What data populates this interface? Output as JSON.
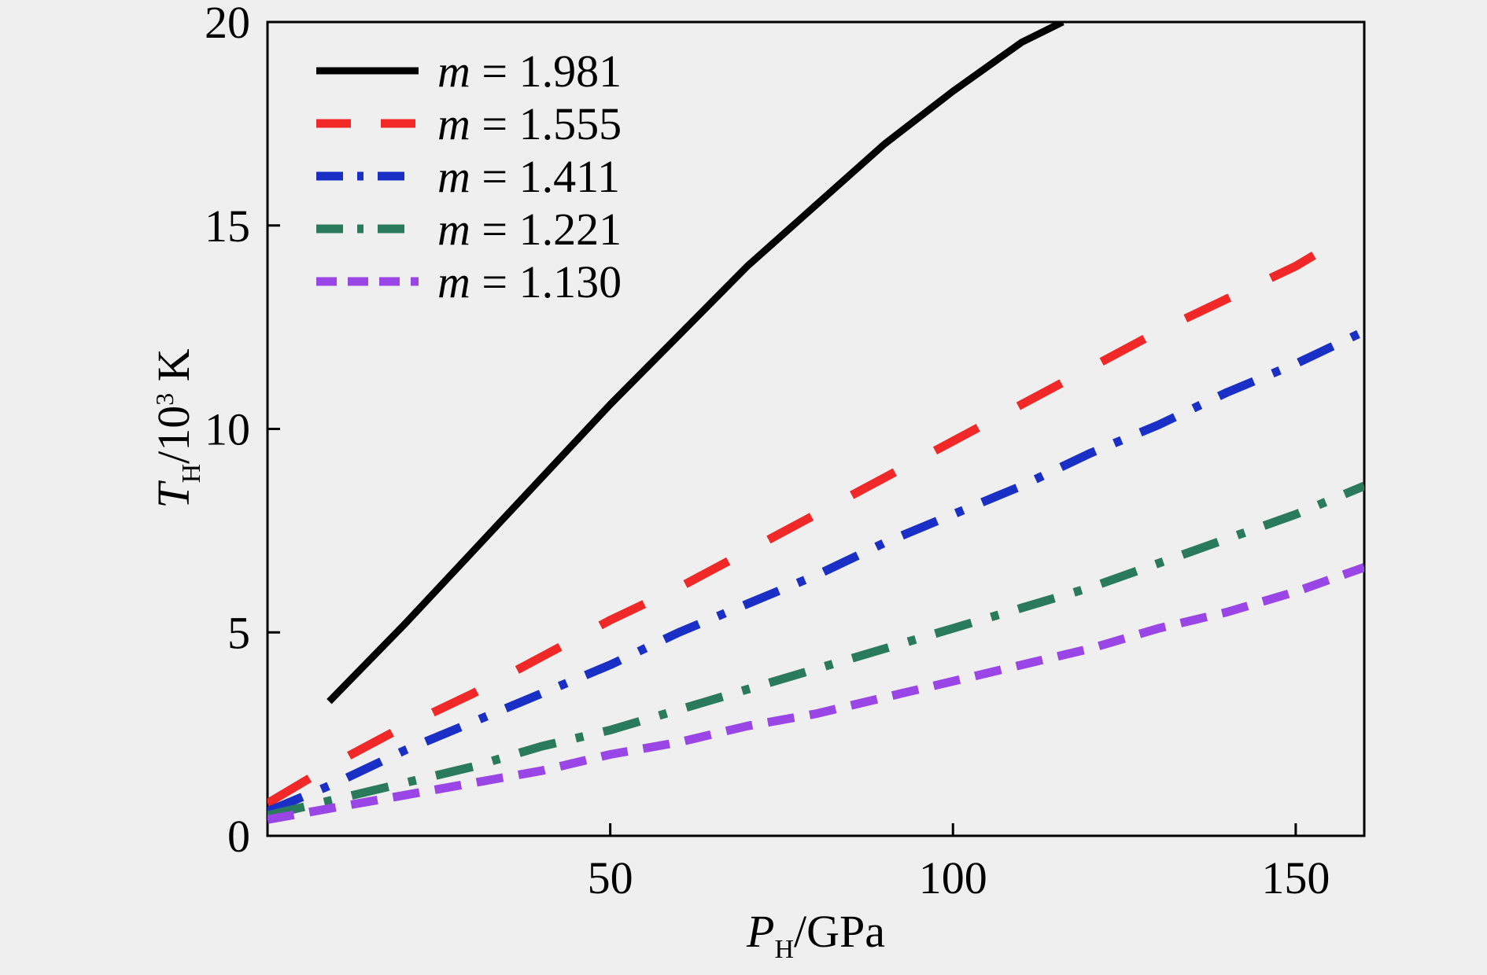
{
  "chart_data": {
    "type": "line",
    "title": "",
    "xlabel": {
      "main": "P",
      "sub": "H",
      "rest": "/GPa"
    },
    "ylabel": {
      "main": "T",
      "sub": "H",
      "mid": "/10",
      "sup": "3",
      "rest": " K"
    },
    "xlim": [
      0,
      160
    ],
    "ylim": [
      0,
      20
    ],
    "xticks": [
      50,
      100,
      150
    ],
    "yticks": [
      0,
      5,
      10,
      15,
      20
    ],
    "grid": false,
    "legend_position": "top-left",
    "series": [
      {
        "name": "m = 1.981",
        "var": "m",
        "eq": " = 1.981",
        "color": "#000000",
        "style": "solid",
        "x": [
          9,
          20,
          30,
          40,
          50,
          60,
          70,
          80,
          90,
          100,
          110,
          116
        ],
        "y": [
          3.3,
          5.2,
          7.0,
          8.8,
          10.6,
          12.3,
          14.0,
          15.5,
          17.0,
          18.3,
          19.5,
          20.0
        ]
      },
      {
        "name": "m = 1.555",
        "var": "m",
        "eq": " = 1.555",
        "color": "#f02828",
        "style": "dashed",
        "x": [
          0,
          5,
          10,
          20,
          30,
          40,
          50,
          60,
          70,
          80,
          90,
          100,
          110,
          120,
          130,
          140,
          150,
          155
        ],
        "y": [
          0.8,
          1.3,
          1.8,
          2.7,
          3.5,
          4.4,
          5.3,
          6.1,
          7.0,
          7.9,
          8.8,
          9.7,
          10.6,
          11.5,
          12.4,
          13.2,
          14.0,
          14.5
        ]
      },
      {
        "name": "m = 1.411",
        "var": "m",
        "eq": " = 1.411",
        "color": "#1a2fc6",
        "style": "dash-dot",
        "x": [
          0,
          10,
          20,
          30,
          40,
          50,
          60,
          70,
          80,
          90,
          100,
          110,
          120,
          130,
          140,
          150,
          160
        ],
        "y": [
          0.6,
          1.3,
          2.1,
          2.8,
          3.5,
          4.2,
          5.0,
          5.7,
          6.4,
          7.2,
          7.9,
          8.6,
          9.4,
          10.1,
          10.9,
          11.6,
          12.4
        ]
      },
      {
        "name": "m = 1.221",
        "var": "m",
        "eq": " = 1.221",
        "color": "#2a7a5c",
        "style": "dash-dot",
        "x": [
          0,
          10,
          20,
          30,
          40,
          50,
          60,
          70,
          80,
          90,
          100,
          110,
          120,
          130,
          140,
          150,
          160
        ],
        "y": [
          0.5,
          0.9,
          1.3,
          1.7,
          2.2,
          2.6,
          3.1,
          3.6,
          4.1,
          4.6,
          5.1,
          5.6,
          6.1,
          6.7,
          7.3,
          7.9,
          8.6
        ]
      },
      {
        "name": "m = 1.130",
        "var": "m",
        "eq": " = 1.130",
        "color": "#9a45e6",
        "style": "short-dashed",
        "x": [
          0,
          10,
          20,
          30,
          40,
          50,
          60,
          70,
          80,
          90,
          100,
          110,
          120,
          130,
          140,
          150,
          160
        ],
        "y": [
          0.4,
          0.7,
          1.0,
          1.3,
          1.6,
          2.0,
          2.3,
          2.7,
          3.0,
          3.4,
          3.8,
          4.2,
          4.6,
          5.1,
          5.5,
          6.0,
          6.6
        ]
      }
    ]
  }
}
